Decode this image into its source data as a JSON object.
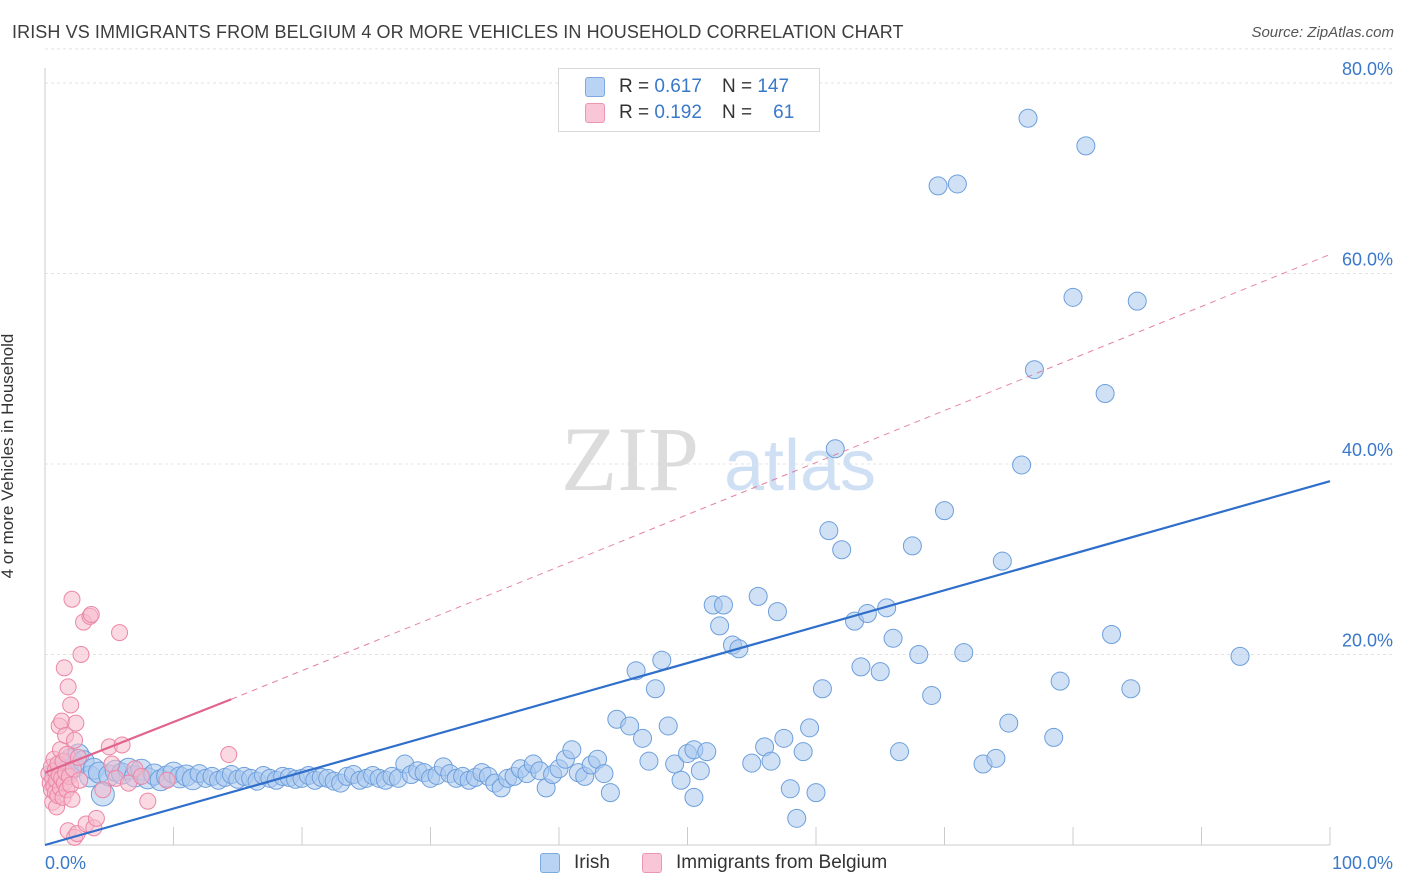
{
  "title": "IRISH VS IMMIGRANTS FROM BELGIUM 4 OR MORE VEHICLES IN HOUSEHOLD CORRELATION CHART",
  "source": "Source: ZipAtlas.com",
  "watermark": {
    "zip": "ZIP",
    "atlas": "atlas"
  },
  "colors": {
    "irish_fill": "#a9c8ef",
    "irish_stroke": "#6d9fdc",
    "irish_line": "#2f6fcb",
    "belgium_fill": "#f6b9cc",
    "belgium_stroke": "#ec86a6",
    "belgium_line": "#e0648c",
    "grid": "#e3e3e3",
    "tick_text": "#3a78c9"
  },
  "legend": {
    "rows": [
      {
        "r_label": "R =",
        "r_value": "0.617",
        "n_label": "N =",
        "n_value": "147"
      },
      {
        "r_label": "R =",
        "r_value": "0.192",
        "n_label": "N =",
        "n_value": "61"
      }
    ]
  },
  "chart_data": {
    "type": "scatter",
    "title": "IRISH VS IMMIGRANTS FROM BELGIUM 4 OR MORE VEHICLES IN HOUSEHOLD CORRELATION CHART",
    "xlabel": "",
    "ylabel": "4 or more Vehicles in Household",
    "xlim": [
      0,
      100
    ],
    "ylim": [
      0,
      84
    ],
    "x_tick_labels": [
      "0.0%",
      "100.0%"
    ],
    "y_ticks": [
      20,
      40,
      60,
      80
    ],
    "y_tick_labels": [
      "20.0%",
      "40.0%",
      "60.0%",
      "80.0%"
    ],
    "grid": true,
    "legend_position": "top-center",
    "series": [
      {
        "name": "Irish",
        "r": 0.617,
        "n": 147,
        "trend": {
          "x": [
            0,
            100
          ],
          "y": [
            0,
            38.2
          ]
        },
        "points": [
          [
            0.8,
            7.5
          ],
          [
            1.2,
            8.0
          ],
          [
            1.5,
            8.5
          ],
          [
            1.8,
            7.8
          ],
          [
            2.0,
            9.0
          ],
          [
            2.3,
            8.2
          ],
          [
            2.6,
            9.5
          ],
          [
            3.0,
            8.8
          ],
          [
            3.5,
            7.2
          ],
          [
            3.8,
            8.0
          ],
          [
            4.2,
            7.6
          ],
          [
            4.5,
            5.3
          ],
          [
            5.0,
            7.3
          ],
          [
            5.5,
            7.8
          ],
          [
            6.0,
            7.5
          ],
          [
            6.5,
            8.0
          ],
          [
            7.0,
            7.2
          ],
          [
            7.5,
            7.9
          ],
          [
            8.0,
            7.0
          ],
          [
            8.5,
            7.4
          ],
          [
            9.0,
            6.8
          ],
          [
            9.5,
            7.2
          ],
          [
            10.0,
            7.6
          ],
          [
            10.5,
            7.1
          ],
          [
            11.0,
            7.3
          ],
          [
            11.5,
            6.9
          ],
          [
            12.0,
            7.5
          ],
          [
            12.5,
            7.0
          ],
          [
            13.0,
            7.2
          ],
          [
            13.5,
            6.8
          ],
          [
            14.0,
            7.1
          ],
          [
            14.5,
            7.4
          ],
          [
            15.0,
            6.9
          ],
          [
            15.5,
            7.2
          ],
          [
            16.0,
            7.0
          ],
          [
            16.5,
            6.7
          ],
          [
            17.0,
            7.3
          ],
          [
            17.5,
            7.0
          ],
          [
            18.0,
            6.8
          ],
          [
            18.5,
            7.2
          ],
          [
            19.0,
            7.1
          ],
          [
            19.5,
            6.9
          ],
          [
            20.0,
            7.0
          ],
          [
            20.5,
            7.3
          ],
          [
            21.0,
            6.8
          ],
          [
            21.5,
            7.1
          ],
          [
            22.0,
            7.0
          ],
          [
            22.5,
            6.7
          ],
          [
            23.0,
            6.5
          ],
          [
            23.5,
            7.2
          ],
          [
            24.0,
            7.4
          ],
          [
            24.5,
            6.8
          ],
          [
            25.0,
            7.0
          ],
          [
            25.5,
            7.3
          ],
          [
            26.0,
            7.0
          ],
          [
            26.5,
            6.8
          ],
          [
            27.0,
            7.2
          ],
          [
            27.5,
            7.0
          ],
          [
            28.0,
            8.5
          ],
          [
            28.5,
            7.4
          ],
          [
            29.0,
            7.8
          ],
          [
            29.5,
            7.6
          ],
          [
            30.0,
            7.0
          ],
          [
            30.5,
            7.3
          ],
          [
            31.0,
            8.2
          ],
          [
            31.5,
            7.5
          ],
          [
            32.0,
            7.0
          ],
          [
            32.5,
            7.2
          ],
          [
            33.0,
            6.8
          ],
          [
            33.5,
            7.1
          ],
          [
            34.0,
            7.6
          ],
          [
            34.5,
            7.2
          ],
          [
            35.0,
            6.5
          ],
          [
            35.5,
            6.0
          ],
          [
            36.0,
            7.0
          ],
          [
            36.5,
            7.2
          ],
          [
            37.0,
            8.0
          ],
          [
            37.5,
            7.5
          ],
          [
            38.0,
            8.5
          ],
          [
            38.5,
            7.8
          ],
          [
            39.0,
            6.0
          ],
          [
            39.5,
            7.4
          ],
          [
            40.0,
            8.0
          ],
          [
            40.5,
            9.0
          ],
          [
            41.0,
            10.0
          ],
          [
            41.5,
            7.6
          ],
          [
            42.0,
            7.2
          ],
          [
            42.5,
            8.4
          ],
          [
            43.0,
            9.0
          ],
          [
            43.5,
            7.5
          ],
          [
            44.0,
            5.5
          ],
          [
            44.5,
            13.2
          ],
          [
            45.5,
            12.5
          ],
          [
            46.0,
            18.3
          ],
          [
            46.5,
            11.2
          ],
          [
            47.0,
            8.8
          ],
          [
            47.5,
            16.4
          ],
          [
            48.0,
            19.4
          ],
          [
            48.5,
            12.5
          ],
          [
            49.0,
            8.5
          ],
          [
            49.5,
            6.8
          ],
          [
            50.0,
            9.6
          ],
          [
            50.5,
            10.0
          ],
          [
            51.0,
            7.8
          ],
          [
            51.5,
            9.8
          ],
          [
            52.0,
            25.2
          ],
          [
            52.5,
            23.0
          ],
          [
            52.8,
            25.2
          ],
          [
            53.5,
            21.0
          ],
          [
            54.0,
            20.6
          ],
          [
            50.5,
            5.0
          ],
          [
            55.0,
            8.6
          ],
          [
            55.5,
            26.1
          ],
          [
            56.0,
            10.3
          ],
          [
            56.5,
            8.8
          ],
          [
            57.0,
            24.5
          ],
          [
            57.5,
            11.2
          ],
          [
            58.0,
            5.9
          ],
          [
            58.5,
            2.8
          ],
          [
            59.0,
            9.8
          ],
          [
            59.5,
            12.3
          ],
          [
            60.0,
            5.5
          ],
          [
            60.5,
            16.4
          ],
          [
            61.0,
            33.0
          ],
          [
            61.5,
            41.6
          ],
          [
            62.0,
            31.0
          ],
          [
            63.0,
            23.5
          ],
          [
            63.5,
            18.7
          ],
          [
            64.0,
            24.3
          ],
          [
            65.0,
            18.2
          ],
          [
            65.5,
            24.9
          ],
          [
            66.0,
            21.7
          ],
          [
            66.5,
            9.8
          ],
          [
            67.5,
            31.4
          ],
          [
            68.0,
            20.0
          ],
          [
            69.0,
            15.7
          ],
          [
            69.5,
            69.2
          ],
          [
            70.0,
            35.1
          ],
          [
            71.0,
            69.4
          ],
          [
            71.5,
            20.2
          ],
          [
            73.0,
            8.5
          ],
          [
            74.0,
            9.1
          ],
          [
            74.5,
            29.8
          ],
          [
            75.0,
            12.8
          ],
          [
            76.0,
            39.9
          ],
          [
            76.5,
            76.3
          ],
          [
            77.0,
            49.9
          ],
          [
            78.5,
            11.3
          ],
          [
            79.0,
            17.2
          ],
          [
            80.0,
            57.5
          ],
          [
            81.0,
            73.4
          ],
          [
            82.5,
            47.4
          ],
          [
            83.0,
            22.1
          ],
          [
            84.5,
            16.4
          ],
          [
            85.0,
            57.1
          ],
          [
            93.0,
            19.8
          ]
        ]
      },
      {
        "name": "Immigrants from Belgium",
        "r": 0.192,
        "n": 61,
        "trend": {
          "x": [
            0,
            14.5
          ],
          "y": [
            7.6,
            15.3
          ],
          "x_dashed": [
            14.5,
            100
          ],
          "y_dashed": [
            15.3,
            62.0
          ]
        },
        "points": [
          [
            0.3,
            7.5
          ],
          [
            0.4,
            6.5
          ],
          [
            0.5,
            5.8
          ],
          [
            0.5,
            8.2
          ],
          [
            0.6,
            4.5
          ],
          [
            0.6,
            7.0
          ],
          [
            0.7,
            6.2
          ],
          [
            0.7,
            9.0
          ],
          [
            0.8,
            5.5
          ],
          [
            0.8,
            7.8
          ],
          [
            0.9,
            4.0
          ],
          [
            0.9,
            6.8
          ],
          [
            1.0,
            8.5
          ],
          [
            1.0,
            5.2
          ],
          [
            1.1,
            7.3
          ],
          [
            1.1,
            12.5
          ],
          [
            1.2,
            6.0
          ],
          [
            1.2,
            10.0
          ],
          [
            1.3,
            13.0
          ],
          [
            1.3,
            7.0
          ],
          [
            1.4,
            5.0
          ],
          [
            1.4,
            8.8
          ],
          [
            1.5,
            18.6
          ],
          [
            1.5,
            6.5
          ],
          [
            1.6,
            11.5
          ],
          [
            1.6,
            7.6
          ],
          [
            1.7,
            9.5
          ],
          [
            1.7,
            5.8
          ],
          [
            1.8,
            16.6
          ],
          [
            1.8,
            1.5
          ],
          [
            1.9,
            7.2
          ],
          [
            2.0,
            14.7
          ],
          [
            2.0,
            6.3
          ],
          [
            2.1,
            25.8
          ],
          [
            2.1,
            4.8
          ],
          [
            2.2,
            8.0
          ],
          [
            2.3,
            11.0
          ],
          [
            2.3,
            0.8
          ],
          [
            2.4,
            12.8
          ],
          [
            2.5,
            1.2
          ],
          [
            2.6,
            9.2
          ],
          [
            2.7,
            6.8
          ],
          [
            2.8,
            20.0
          ],
          [
            3.0,
            23.4
          ],
          [
            3.2,
            2.2
          ],
          [
            3.5,
            24.0
          ],
          [
            3.6,
            24.2
          ],
          [
            3.8,
            1.8
          ],
          [
            4.0,
            2.8
          ],
          [
            4.5,
            5.8
          ],
          [
            5.0,
            10.3
          ],
          [
            5.2,
            8.5
          ],
          [
            5.5,
            7.0
          ],
          [
            5.8,
            22.3
          ],
          [
            6.0,
            10.5
          ],
          [
            6.5,
            6.5
          ],
          [
            7.0,
            8.0
          ],
          [
            7.5,
            7.2
          ],
          [
            8.0,
            4.6
          ],
          [
            9.5,
            6.8
          ],
          [
            14.3,
            9.5
          ]
        ]
      }
    ]
  },
  "bottom_legend": [
    "Irish",
    "Immigrants from Belgium"
  ]
}
